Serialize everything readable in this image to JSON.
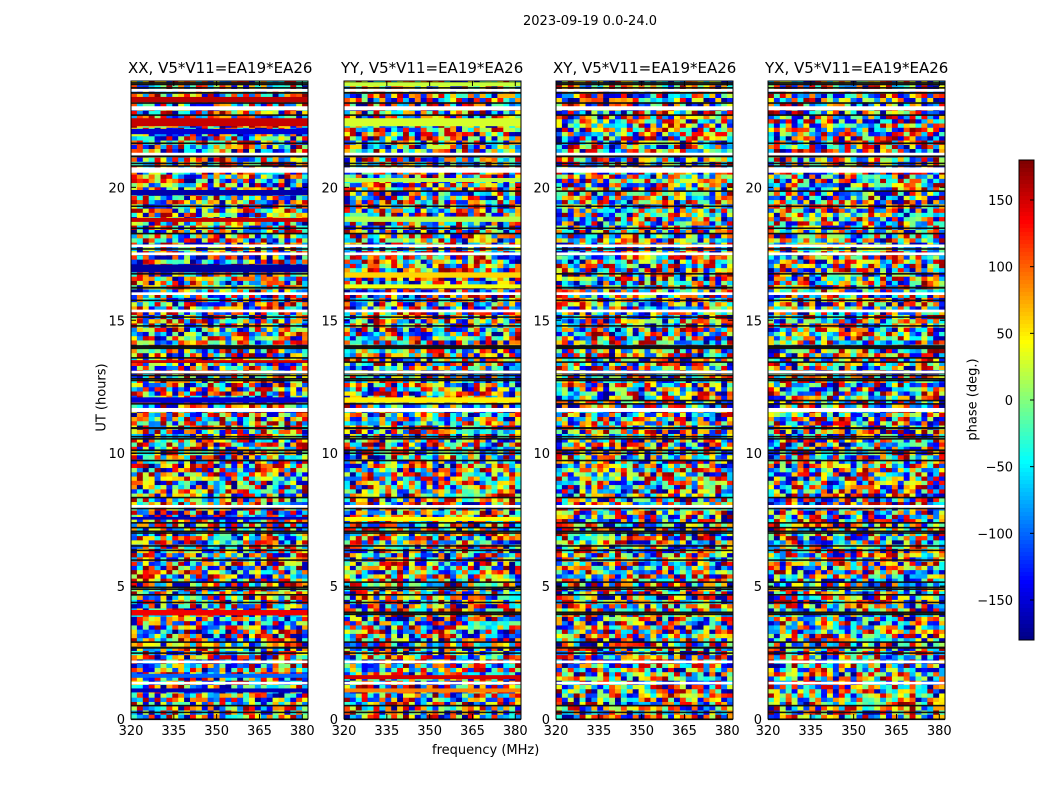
{
  "figure": {
    "suptitle": "2023-09-19 0.0-24.0",
    "xlabel": "frequency (MHz)",
    "ylabel": "UT (hours)",
    "colorbar_label": "phase (deg.)"
  },
  "chart_data": [
    {
      "type": "heatmap",
      "title": "XX, V5*V11=EA19*EA26",
      "xlabel": "frequency (MHz)",
      "ylabel": "UT (hours)",
      "xlim": [
        320,
        382
      ],
      "ylim": [
        0,
        24
      ],
      "xticks": [
        320,
        335,
        350,
        365,
        380
      ],
      "yticks": [
        0,
        5,
        10,
        15,
        20
      ],
      "clim": [
        -180,
        180
      ],
      "colormap": "jet",
      "coherent_bands": [
        {
          "t0": 23.2,
          "t1": 23.4,
          "phase": 160
        },
        {
          "t0": 22.3,
          "t1": 22.6,
          "phase": 155
        },
        {
          "t0": 22.0,
          "t1": 22.2,
          "phase": -150
        },
        {
          "t0": 19.7,
          "t1": 19.9,
          "phase": -165
        },
        {
          "t0": 18.7,
          "t1": 18.85,
          "phase": 155
        },
        {
          "t0": 16.8,
          "t1": 17.1,
          "phase": -170
        },
        {
          "t0": 13.4,
          "t1": 13.5,
          "phase": 150
        },
        {
          "t0": 11.9,
          "t1": 12.1,
          "phase": -150
        },
        {
          "t0": 7.5,
          "t1": 7.6,
          "phase": -160
        },
        {
          "t0": 3.9,
          "t1": 4.1,
          "phase": 140
        },
        {
          "t0": 1.55,
          "t1": 1.7,
          "phase": -100
        },
        {
          "t0": 1.0,
          "t1": 1.15,
          "phase": -160
        }
      ]
    },
    {
      "type": "heatmap",
      "title": "YY, V5*V11=EA19*EA26",
      "xlabel": "frequency (MHz)",
      "ylabel": "UT (hours)",
      "xlim": [
        320,
        382
      ],
      "ylim": [
        0,
        24
      ],
      "xticks": [
        320,
        335,
        350,
        365,
        380
      ],
      "yticks": [
        0,
        5,
        10,
        15,
        20
      ],
      "clim": [
        -180,
        180
      ],
      "colormap": "jet",
      "coherent_bands": [
        {
          "t0": 23.8,
          "t1": 23.95,
          "phase": 25
        },
        {
          "t0": 22.3,
          "t1": 22.6,
          "phase": 30
        },
        {
          "t0": 20.2,
          "t1": 20.35,
          "phase": 20
        },
        {
          "t0": 18.7,
          "t1": 18.9,
          "phase": 20
        },
        {
          "t0": 16.6,
          "t1": 16.8,
          "phase": 60
        },
        {
          "t0": 16.2,
          "t1": 16.35,
          "phase": 40
        },
        {
          "t0": 13.0,
          "t1": 13.1,
          "phase": 40
        },
        {
          "t0": 11.9,
          "t1": 12.1,
          "phase": 50
        },
        {
          "t0": 7.45,
          "t1": 7.6,
          "phase": 45
        },
        {
          "t0": 1.5,
          "t1": 1.65,
          "phase": 150
        },
        {
          "t0": 1.0,
          "t1": 1.15,
          "phase": 90
        }
      ]
    },
    {
      "type": "heatmap",
      "title": "XY, V5*V11=EA19*EA26",
      "xlabel": "frequency (MHz)",
      "ylabel": "UT (hours)",
      "xlim": [
        320,
        382
      ],
      "ylim": [
        0,
        24
      ],
      "xticks": [
        320,
        335,
        350,
        365,
        380
      ],
      "yticks": [
        0,
        5,
        10,
        15,
        20
      ],
      "clim": [
        -180,
        180
      ],
      "colormap": "jet",
      "coherent_bands": []
    },
    {
      "type": "heatmap",
      "title": "YX, V5*V11=EA19*EA26",
      "xlabel": "frequency (MHz)",
      "ylabel": "UT (hours)",
      "xlim": [
        320,
        382
      ],
      "ylim": [
        0,
        24
      ],
      "xticks": [
        320,
        335,
        350,
        365,
        380
      ],
      "yticks": [
        0,
        5,
        10,
        15,
        20
      ],
      "clim": [
        -180,
        180
      ],
      "colormap": "jet",
      "coherent_bands": []
    }
  ],
  "flagged_rows": [
    {
      "t0": 23.6,
      "t1": 23.7
    },
    {
      "t0": 22.9,
      "t1": 23.05
    },
    {
      "t0": 21.2,
      "t1": 21.3
    },
    {
      "t0": 20.55,
      "t1": 20.75
    },
    {
      "t0": 17.75,
      "t1": 17.85
    },
    {
      "t0": 17.45,
      "t1": 17.55
    },
    {
      "t0": 15.95,
      "t1": 16.05
    },
    {
      "t0": 15.3,
      "t1": 15.4
    },
    {
      "t0": 13.0,
      "t1": 13.1
    },
    {
      "t0": 11.55,
      "t1": 11.7
    },
    {
      "t0": 7.95,
      "t1": 8.05
    },
    {
      "t0": 2.1,
      "t1": 2.2
    },
    {
      "t0": 1.3,
      "t1": 1.4
    }
  ],
  "colorbar": {
    "ticks": [
      150,
      100,
      50,
      0,
      -50,
      -100,
      -150
    ],
    "tick_labels": [
      "150",
      "100",
      "50",
      "0",
      "−50",
      "−100",
      "−150"
    ]
  }
}
